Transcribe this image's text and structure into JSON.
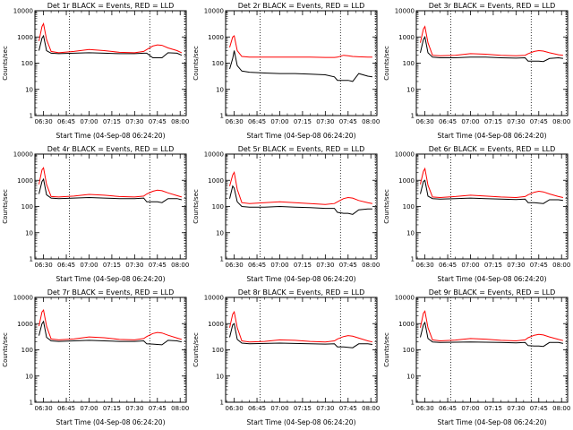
{
  "figure": {
    "xlabel": "Start Time (04-Sep-08 06:24:20)",
    "ylabel": "Counts/sec",
    "x_tick_labels": [
      "06:30",
      "06:45",
      "07:00",
      "07:15",
      "07:30",
      "07:45",
      "08:00"
    ],
    "y_tick_labels": [
      "1",
      "10",
      "100",
      "1000",
      "10000"
    ],
    "colors": {
      "events": "#000000",
      "lld": "#ff0000",
      "axes": "#000000",
      "background": "#ffffff"
    }
  },
  "chart_data": [
    {
      "type": "line",
      "title": "Det 1r BLACK = Events, RED = LLD",
      "xlabel": "Start Time (04-Sep-08 06:24:20)",
      "ylabel": "Counts/sec",
      "yscale": "log",
      "ylim": [
        1,
        10000
      ],
      "xlim": [
        "06:24:20",
        "08:04"
      ],
      "marker_times": [
        "06:47",
        "07:40",
        "08:03"
      ],
      "x": [
        "06:27",
        "06:29",
        "06:30",
        "06:32",
        "06:35",
        "06:40",
        "06:50",
        "07:00",
        "07:10",
        "07:20",
        "07:30",
        "07:36",
        "07:38",
        "07:42",
        "07:45",
        "07:48",
        "07:52",
        "07:58",
        "08:01"
      ],
      "series": [
        {
          "name": "BLACK = Events",
          "values": [
            300,
            900,
            1100,
            300,
            240,
            230,
            240,
            250,
            240,
            230,
            230,
            240,
            240,
            160,
            160,
            160,
            250,
            240,
            200
          ]
        },
        {
          "name": "RED = LLD",
          "values": [
            700,
            2500,
            3200,
            800,
            280,
            250,
            280,
            330,
            300,
            260,
            250,
            280,
            330,
            450,
            500,
            480,
            380,
            300,
            250
          ]
        }
      ]
    },
    {
      "type": "line",
      "title": "Det 2r BLACK = Events, RED = LLD",
      "xlabel": "Start Time (04-Sep-08 06:24:20)",
      "ylabel": "Counts/sec",
      "yscale": "log",
      "ylim": [
        1,
        10000
      ],
      "xlim": [
        "06:24:20",
        "08:04"
      ],
      "marker_times": [
        "06:47",
        "07:40",
        "08:03"
      ],
      "x": [
        "06:27",
        "06:29",
        "06:30",
        "06:32",
        "06:35",
        "06:40",
        "06:50",
        "07:00",
        "07:10",
        "07:20",
        "07:30",
        "07:36",
        "07:38",
        "07:42",
        "07:45",
        "07:48",
        "07:52",
        "07:58",
        "08:01"
      ],
      "series": [
        {
          "name": "BLACK = Events",
          "values": [
            60,
            150,
            300,
            80,
            50,
            45,
            42,
            40,
            40,
            38,
            36,
            30,
            22,
            22,
            22,
            20,
            40,
            32,
            30
          ]
        },
        {
          "name": "RED = LLD",
          "values": [
            400,
            1000,
            1100,
            300,
            180,
            170,
            170,
            170,
            170,
            170,
            165,
            165,
            170,
            200,
            190,
            180,
            175,
            170,
            170
          ]
        }
      ]
    },
    {
      "type": "line",
      "title": "Det 3r BLACK = Events, RED = LLD",
      "xlabel": "Start Time (04-Sep-08 06:24:20)",
      "ylabel": "Counts/sec",
      "yscale": "log",
      "ylim": [
        1,
        10000
      ],
      "xlim": [
        "06:24:20",
        "08:04"
      ],
      "marker_times": [
        "06:47",
        "07:40",
        "08:03"
      ],
      "x": [
        "06:27",
        "06:29",
        "06:30",
        "06:32",
        "06:35",
        "06:40",
        "06:50",
        "07:00",
        "07:10",
        "07:20",
        "07:30",
        "07:36",
        "07:38",
        "07:42",
        "07:45",
        "07:48",
        "07:52",
        "07:58",
        "08:01"
      ],
      "series": [
        {
          "name": "BLACK = Events",
          "values": [
            250,
            800,
            1000,
            250,
            170,
            160,
            160,
            170,
            170,
            160,
            155,
            160,
            120,
            120,
            120,
            115,
            150,
            160,
            150
          ]
        },
        {
          "name": "RED = LLD",
          "values": [
            600,
            2000,
            2500,
            600,
            200,
            190,
            200,
            230,
            220,
            200,
            190,
            200,
            230,
            280,
            300,
            290,
            250,
            210,
            200
          ]
        }
      ]
    },
    {
      "type": "line",
      "title": "Det 4r BLACK = Events, RED = LLD",
      "xlabel": "Start Time (04-Sep-08 06:24:20)",
      "ylabel": "Counts/sec",
      "yscale": "log",
      "ylim": [
        1,
        10000
      ],
      "xlim": [
        "06:24:20",
        "08:04"
      ],
      "marker_times": [
        "06:47",
        "07:40",
        "08:03"
      ],
      "x": [
        "06:27",
        "06:29",
        "06:30",
        "06:32",
        "06:35",
        "06:40",
        "06:50",
        "07:00",
        "07:10",
        "07:20",
        "07:30",
        "07:36",
        "07:38",
        "07:42",
        "07:45",
        "07:48",
        "07:52",
        "07:58",
        "08:01"
      ],
      "series": [
        {
          "name": "BLACK = Events",
          "values": [
            300,
            900,
            1100,
            280,
            210,
            200,
            210,
            220,
            210,
            200,
            200,
            210,
            150,
            150,
            150,
            140,
            200,
            200,
            180
          ]
        },
        {
          "name": "RED = LLD",
          "values": [
            700,
            2500,
            3000,
            700,
            240,
            230,
            250,
            290,
            270,
            240,
            230,
            250,
            300,
            380,
            420,
            400,
            330,
            260,
            230
          ]
        }
      ]
    },
    {
      "type": "line",
      "title": "Det 5r BLACK = Events, RED = LLD",
      "xlabel": "Start Time (04-Sep-08 06:24:20)",
      "ylabel": "Counts/sec",
      "yscale": "log",
      "ylim": [
        1,
        10000
      ],
      "xlim": [
        "06:24:20",
        "08:04"
      ],
      "marker_times": [
        "06:47",
        "07:40",
        "08:03"
      ],
      "x": [
        "06:27",
        "06:29",
        "06:30",
        "06:32",
        "06:35",
        "06:40",
        "06:50",
        "07:00",
        "07:10",
        "07:20",
        "07:30",
        "07:36",
        "07:38",
        "07:42",
        "07:45",
        "07:48",
        "07:52",
        "07:58",
        "08:01"
      ],
      "series": [
        {
          "name": "BLACK = Events",
          "values": [
            200,
            600,
            500,
            150,
            100,
            95,
            95,
            100,
            95,
            90,
            85,
            85,
            60,
            55,
            55,
            50,
            75,
            80,
            80
          ]
        },
        {
          "name": "RED = LLD",
          "values": [
            600,
            1600,
            2000,
            450,
            140,
            130,
            140,
            150,
            140,
            130,
            120,
            130,
            150,
            200,
            220,
            210,
            170,
            140,
            130
          ]
        }
      ]
    },
    {
      "type": "line",
      "title": "Det 6r BLACK = Events, RED = LLD",
      "xlabel": "Start Time (04-Sep-08 06:24:20)",
      "ylabel": "Counts/sec",
      "yscale": "log",
      "ylim": [
        1,
        10000
      ],
      "xlim": [
        "06:24:20",
        "08:04"
      ],
      "marker_times": [
        "06:47",
        "07:40",
        "08:03"
      ],
      "x": [
        "06:27",
        "06:29",
        "06:30",
        "06:32",
        "06:35",
        "06:40",
        "06:50",
        "07:00",
        "07:10",
        "07:20",
        "07:30",
        "07:36",
        "07:38",
        "07:42",
        "07:45",
        "07:48",
        "07:52",
        "07:58",
        "08:01"
      ],
      "series": [
        {
          "name": "BLACK = Events",
          "values": [
            300,
            900,
            1000,
            250,
            200,
            190,
            200,
            210,
            200,
            190,
            185,
            190,
            140,
            140,
            135,
            130,
            180,
            180,
            170
          ]
        },
        {
          "name": "RED = LLD",
          "values": [
            700,
            2200,
            2800,
            650,
            230,
            220,
            240,
            270,
            250,
            230,
            220,
            240,
            280,
            350,
            380,
            360,
            300,
            240,
            220
          ]
        }
      ]
    },
    {
      "type": "line",
      "title": "Det 7r BLACK = Events, RED = LLD",
      "xlabel": "Start Time (04-Sep-08 06:24:20)",
      "ylabel": "Counts/sec",
      "yscale": "log",
      "ylim": [
        1,
        10000
      ],
      "xlim": [
        "06:24:20",
        "08:04"
      ],
      "marker_times": [
        "06:47",
        "07:40",
        "08:03"
      ],
      "x": [
        "06:27",
        "06:29",
        "06:30",
        "06:32",
        "06:35",
        "06:40",
        "06:50",
        "07:00",
        "07:10",
        "07:20",
        "07:30",
        "07:36",
        "07:38",
        "07:42",
        "07:45",
        "07:48",
        "07:52",
        "07:58",
        "08:01"
      ],
      "series": [
        {
          "name": "BLACK = Events",
          "values": [
            350,
            1000,
            1200,
            300,
            220,
            210,
            220,
            230,
            220,
            210,
            210,
            220,
            170,
            165,
            160,
            155,
            230,
            220,
            200
          ]
        },
        {
          "name": "RED = LLD",
          "values": [
            800,
            2800,
            3300,
            800,
            260,
            240,
            260,
            310,
            290,
            250,
            240,
            270,
            320,
            420,
            460,
            440,
            360,
            280,
            250
          ]
        }
      ]
    },
    {
      "type": "line",
      "title": "Det 8r BLACK = Events, RED = LLD",
      "xlabel": "Start Time (04-Sep-08 06:24:20)",
      "ylabel": "Counts/sec",
      "yscale": "log",
      "ylim": [
        1,
        10000
      ],
      "xlim": [
        "06:24:20",
        "08:04"
      ],
      "marker_times": [
        "06:47",
        "07:40",
        "08:03"
      ],
      "x": [
        "06:27",
        "06:29",
        "06:30",
        "06:32",
        "06:35",
        "06:40",
        "06:50",
        "07:00",
        "07:10",
        "07:20",
        "07:30",
        "07:36",
        "07:38",
        "07:42",
        "07:45",
        "07:48",
        "07:52",
        "07:58",
        "08:01"
      ],
      "series": [
        {
          "name": "BLACK = Events",
          "values": [
            300,
            900,
            1000,
            250,
            180,
            170,
            175,
            180,
            175,
            170,
            165,
            170,
            130,
            130,
            125,
            120,
            170,
            170,
            160
          ]
        },
        {
          "name": "RED = LLD",
          "values": [
            700,
            2300,
            2800,
            700,
            220,
            200,
            210,
            240,
            230,
            210,
            200,
            220,
            260,
            320,
            350,
            330,
            280,
            220,
            200
          ]
        }
      ]
    },
    {
      "type": "line",
      "title": "Det 9r BLACK = Events, RED = LLD",
      "xlabel": "Start Time (04-Sep-08 06:24:20)",
      "ylabel": "Counts/sec",
      "yscale": "log",
      "ylim": [
        1,
        10000
      ],
      "xlim": [
        "06:24:20",
        "08:04"
      ],
      "marker_times": [
        "06:47",
        "07:40",
        "08:03"
      ],
      "x": [
        "06:27",
        "06:29",
        "06:30",
        "06:32",
        "06:35",
        "06:40",
        "06:50",
        "07:00",
        "07:10",
        "07:20",
        "07:30",
        "07:36",
        "07:38",
        "07:42",
        "07:45",
        "07:48",
        "07:52",
        "07:58",
        "08:01"
      ],
      "series": [
        {
          "name": "BLACK = Events",
          "values": [
            300,
            900,
            1100,
            270,
            200,
            190,
            195,
            200,
            195,
            190,
            185,
            190,
            145,
            140,
            140,
            135,
            190,
            190,
            175
          ]
        },
        {
          "name": "RED = LLD",
          "values": [
            700,
            2500,
            3000,
            700,
            240,
            220,
            235,
            270,
            255,
            230,
            220,
            240,
            290,
            360,
            390,
            370,
            310,
            250,
            225
          ]
        }
      ]
    }
  ]
}
